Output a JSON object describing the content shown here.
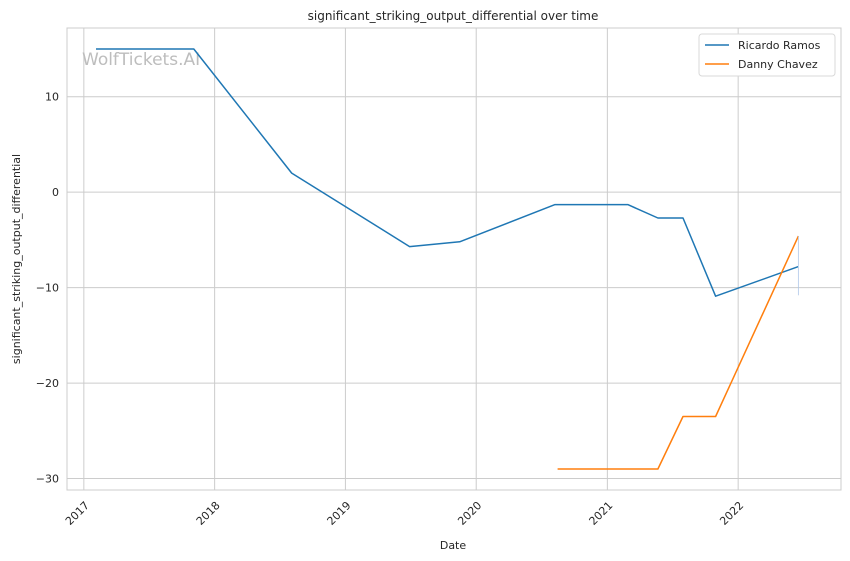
{
  "chart_data": {
    "type": "line",
    "title": "significant_striking_output_differential over time",
    "xlabel": "Date",
    "ylabel": "significant_striking_output_differential",
    "watermark": "WolfTickets.AI",
    "xlim": [
      "2016-11-15",
      "2022-10-15"
    ],
    "ylim": [
      -31.2,
      17.2
    ],
    "x_ticks": [
      {
        "date": "2017-01-01",
        "label": "2017"
      },
      {
        "date": "2018-01-01",
        "label": "2018"
      },
      {
        "date": "2019-01-01",
        "label": "2019"
      },
      {
        "date": "2020-01-01",
        "label": "2020"
      },
      {
        "date": "2021-01-01",
        "label": "2021"
      },
      {
        "date": "2022-01-01",
        "label": "2022"
      }
    ],
    "y_ticks": [
      {
        "value": 10,
        "label": "10"
      },
      {
        "value": 0,
        "label": "0"
      },
      {
        "value": -10,
        "label": "−10"
      },
      {
        "value": -20,
        "label": "−20"
      },
      {
        "value": -30,
        "label": "−30"
      }
    ],
    "grid": true,
    "legend_position": "top-right",
    "series": [
      {
        "name": "Ricardo Ramos",
        "color": "#1f77b4",
        "points": [
          {
            "x": "2017-02-04",
            "y": 15.0
          },
          {
            "x": "2017-11-04",
            "y": 15.0
          },
          {
            "x": "2018-08-04",
            "y": 2.0
          },
          {
            "x": "2019-06-29",
            "y": -5.7
          },
          {
            "x": "2019-11-16",
            "y": -5.2
          },
          {
            "x": "2020-08-08",
            "y": -1.3
          },
          {
            "x": "2021-02-27",
            "y": -1.3
          },
          {
            "x": "2021-05-22",
            "y": -2.7
          },
          {
            "x": "2021-07-31",
            "y": -2.7
          },
          {
            "x": "2021-10-30",
            "y": -10.9
          },
          {
            "x": "2022-06-18",
            "y": -7.8
          }
        ]
      },
      {
        "name": "Danny Chavez",
        "color": "#ff7f0e",
        "points": [
          {
            "x": "2020-08-15",
            "y": -29.0
          },
          {
            "x": "2021-05-22",
            "y": -29.0
          },
          {
            "x": "2021-07-31",
            "y": -23.5
          },
          {
            "x": "2021-10-30",
            "y": -23.5
          },
          {
            "x": "2022-06-18",
            "y": -4.6
          }
        ]
      }
    ]
  }
}
